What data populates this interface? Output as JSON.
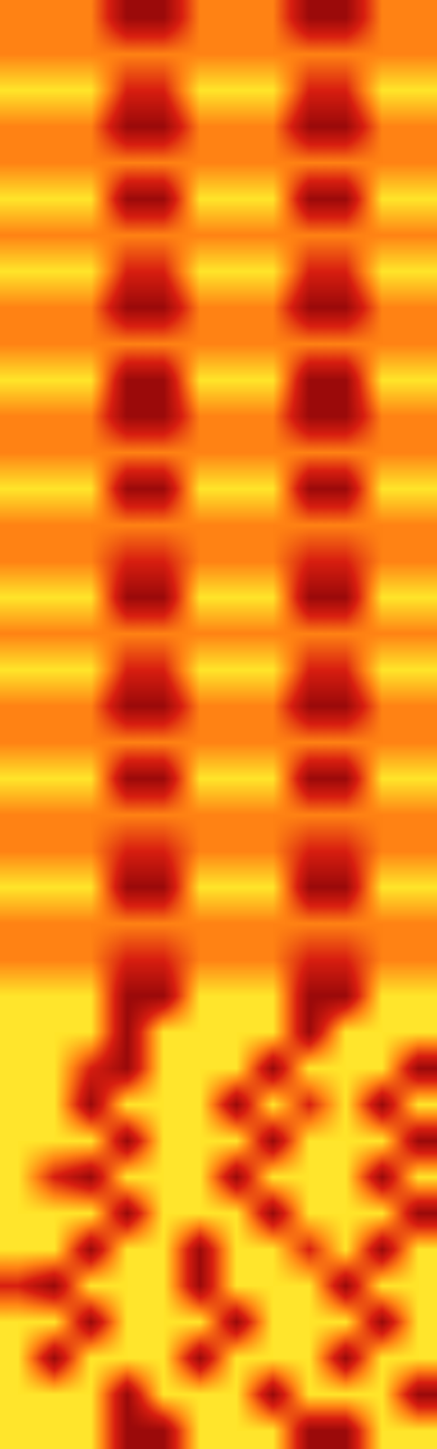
{
  "chart_data": {
    "type": "heatmap",
    "tick_labels": false,
    "cells": [
      [
        2,
        2,
        2,
        0,
        0,
        2,
        2,
        2,
        0,
        0,
        2,
        2
      ],
      [
        2,
        2,
        2,
        2,
        2,
        2,
        2,
        2,
        2,
        2,
        2,
        2
      ],
      [
        3,
        3,
        3,
        1,
        1,
        3,
        3,
        3,
        1,
        1,
        3,
        3
      ],
      [
        2,
        2,
        2,
        0,
        0,
        2,
        2,
        2,
        0,
        0,
        2,
        2
      ],
      [
        2,
        2,
        2,
        2,
        2,
        2,
        2,
        2,
        2,
        2,
        2,
        2
      ],
      [
        3,
        3,
        3,
        0,
        0,
        3,
        3,
        3,
        0,
        0,
        3,
        3
      ],
      [
        2,
        2,
        2,
        2,
        2,
        2,
        2,
        2,
        2,
        2,
        2,
        2
      ],
      [
        3,
        3,
        3,
        1,
        1,
        3,
        3,
        3,
        1,
        1,
        3,
        3
      ],
      [
        2,
        2,
        2,
        0,
        0,
        2,
        2,
        2,
        0,
        0,
        2,
        2
      ],
      [
        2,
        2,
        2,
        2,
        2,
        2,
        2,
        2,
        2,
        2,
        2,
        2
      ],
      [
        3,
        3,
        3,
        0,
        0,
        3,
        3,
        3,
        0,
        0,
        3,
        3
      ],
      [
        2,
        2,
        2,
        0,
        0,
        2,
        2,
        2,
        0,
        0,
        2,
        2
      ],
      [
        2,
        2,
        2,
        2,
        2,
        2,
        2,
        2,
        2,
        2,
        2,
        2
      ],
      [
        3,
        3,
        3,
        0,
        0,
        3,
        3,
        3,
        0,
        0,
        3,
        3
      ],
      [
        2,
        2,
        2,
        2,
        2,
        2,
        2,
        2,
        2,
        2,
        2,
        2
      ],
      [
        2,
        2,
        2,
        1,
        1,
        2,
        2,
        2,
        1,
        1,
        2,
        2
      ],
      [
        3,
        3,
        3,
        0,
        0,
        3,
        3,
        3,
        0,
        0,
        3,
        3
      ],
      [
        2,
        2,
        2,
        2,
        2,
        2,
        2,
        2,
        2,
        2,
        2,
        2
      ],
      [
        3,
        3,
        3,
        1,
        1,
        3,
        3,
        3,
        1,
        1,
        3,
        3
      ],
      [
        2,
        2,
        2,
        0,
        0,
        2,
        2,
        2,
        0,
        0,
        2,
        2
      ],
      [
        2,
        2,
        2,
        2,
        2,
        2,
        2,
        2,
        2,
        2,
        2,
        2
      ],
      [
        3,
        3,
        3,
        0,
        0,
        3,
        3,
        3,
        0,
        0,
        3,
        3
      ],
      [
        2,
        2,
        2,
        2,
        2,
        2,
        2,
        2,
        2,
        2,
        2,
        2
      ],
      [
        2,
        2,
        2,
        1,
        1,
        2,
        2,
        2,
        1,
        1,
        2,
        2
      ],
      [
        3,
        3,
        3,
        0,
        0,
        3,
        3,
        3,
        0,
        0,
        3,
        3
      ],
      [
        2,
        2,
        2,
        2,
        2,
        2,
        2,
        2,
        2,
        2,
        2,
        2
      ],
      [
        2,
        2,
        2,
        1,
        1,
        2,
        2,
        2,
        1,
        1,
        2,
        2
      ],
      [
        3,
        3,
        3,
        0,
        0,
        3,
        3,
        3,
        0,
        0,
        3,
        3
      ],
      [
        3,
        3,
        3,
        0,
        3,
        3,
        3,
        3,
        0,
        3,
        3,
        3
      ],
      [
        3,
        3,
        1,
        0,
        3,
        3,
        3,
        0,
        3,
        3,
        3,
        0
      ],
      [
        3,
        3,
        0,
        3,
        3,
        3,
        0,
        3,
        1,
        3,
        0,
        3
      ],
      [
        3,
        3,
        3,
        0,
        3,
        3,
        3,
        0,
        3,
        3,
        3,
        0
      ],
      [
        3,
        1,
        0,
        3,
        3,
        3,
        0,
        3,
        3,
        3,
        0,
        3
      ],
      [
        3,
        3,
        3,
        0,
        3,
        3,
        3,
        0,
        3,
        3,
        3,
        0
      ],
      [
        3,
        3,
        0,
        3,
        3,
        0,
        3,
        3,
        1,
        3,
        0,
        3
      ],
      [
        1,
        0,
        3,
        3,
        3,
        0,
        3,
        3,
        3,
        0,
        3,
        3
      ],
      [
        3,
        3,
        0,
        3,
        3,
        3,
        0,
        3,
        3,
        3,
        0,
        3
      ],
      [
        3,
        0,
        3,
        3,
        3,
        0,
        3,
        3,
        3,
        0,
        3,
        3
      ],
      [
        3,
        3,
        3,
        0,
        3,
        3,
        3,
        0,
        3,
        3,
        3,
        0
      ],
      [
        3,
        3,
        3,
        0,
        0,
        3,
        3,
        3,
        0,
        0,
        3,
        3
      ]
    ]
  }
}
